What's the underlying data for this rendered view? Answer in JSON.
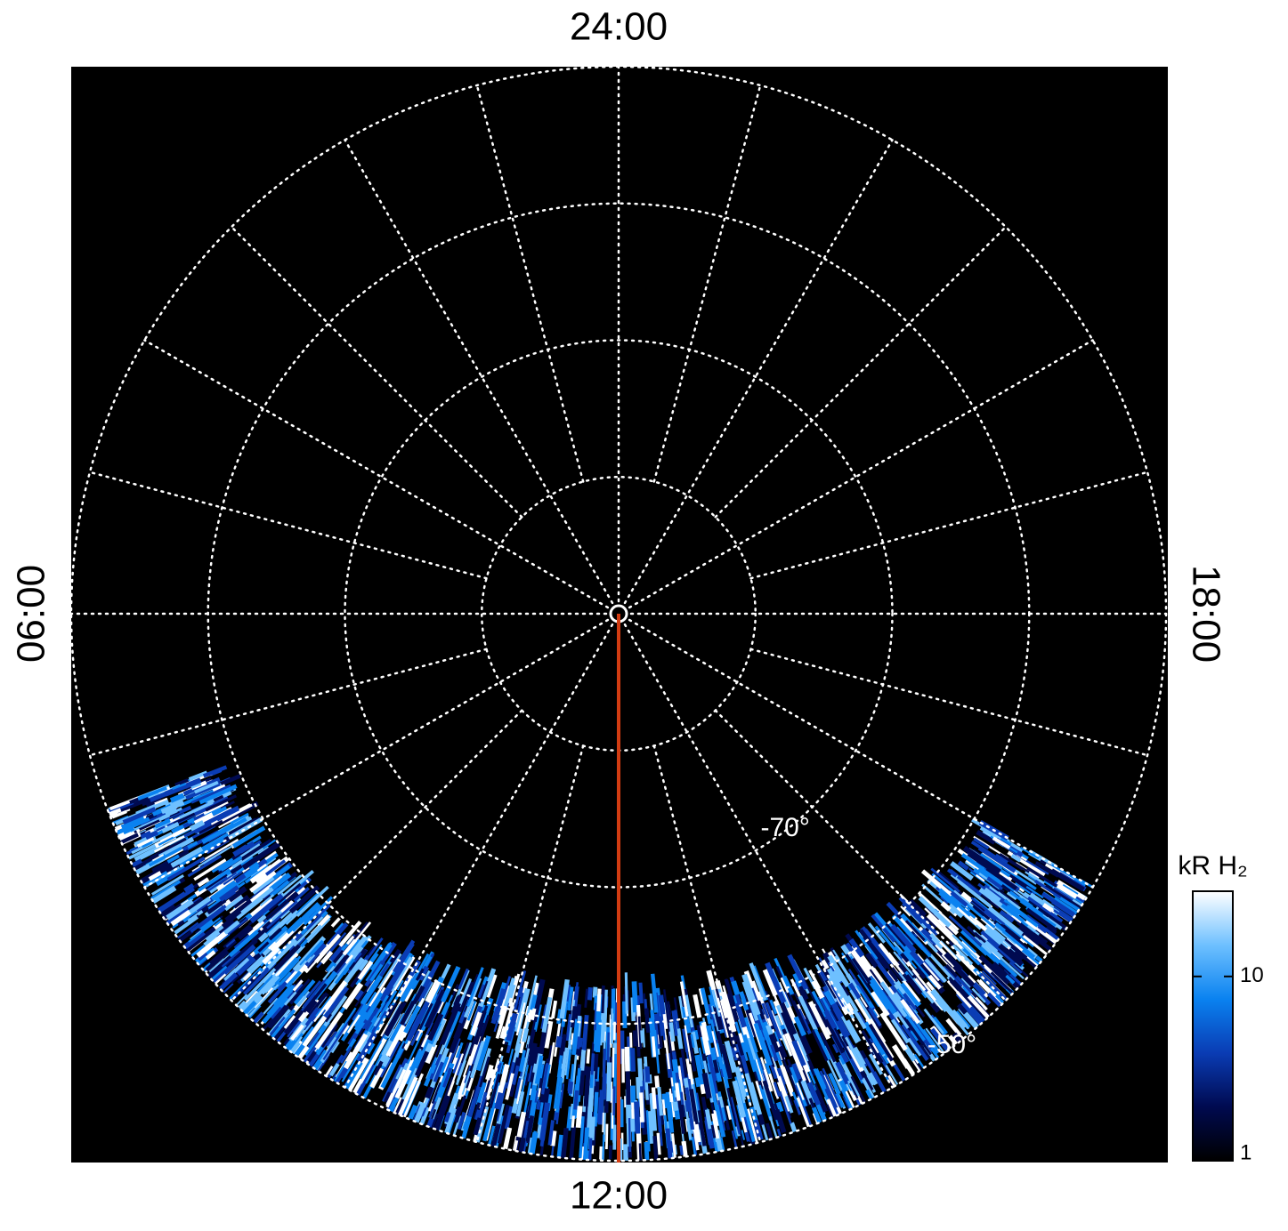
{
  "chart_data": {
    "type": "polar_image",
    "rlim": [
      -90,
      -50
    ],
    "rticks": [
      -80,
      {
        "value": -70,
        "label": "-70°"
      },
      -60,
      {
        "value": -50,
        "label": "-50°"
      }
    ],
    "lat_label_lt": 14.5,
    "ltticks": [
      0,
      1,
      2,
      3,
      4,
      5,
      6,
      7,
      8,
      9,
      10,
      11,
      12,
      13,
      14,
      15,
      16,
      17,
      18,
      19,
      20,
      21,
      22,
      23
    ],
    "lt_labels": [
      {
        "value": 24,
        "label": "24:00"
      },
      {
        "value": 6,
        "label": "06:00"
      },
      {
        "value": 12,
        "label": "12:00"
      },
      {
        "value": 18,
        "label": "18:00"
      }
    ],
    "meridian_line": {
      "lt": 12,
      "color": "#d23c12"
    },
    "colorbar": {
      "label": "kR H₂",
      "log": true,
      "clim": [
        1,
        29
      ],
      "ticks": [
        1,
        10
      ],
      "colors": [
        "#000000",
        "#000a50",
        "#0a3cb4",
        "#0a82f0",
        "#6ec0ff",
        "#ffffff"
      ]
    },
    "grid": true
  }
}
